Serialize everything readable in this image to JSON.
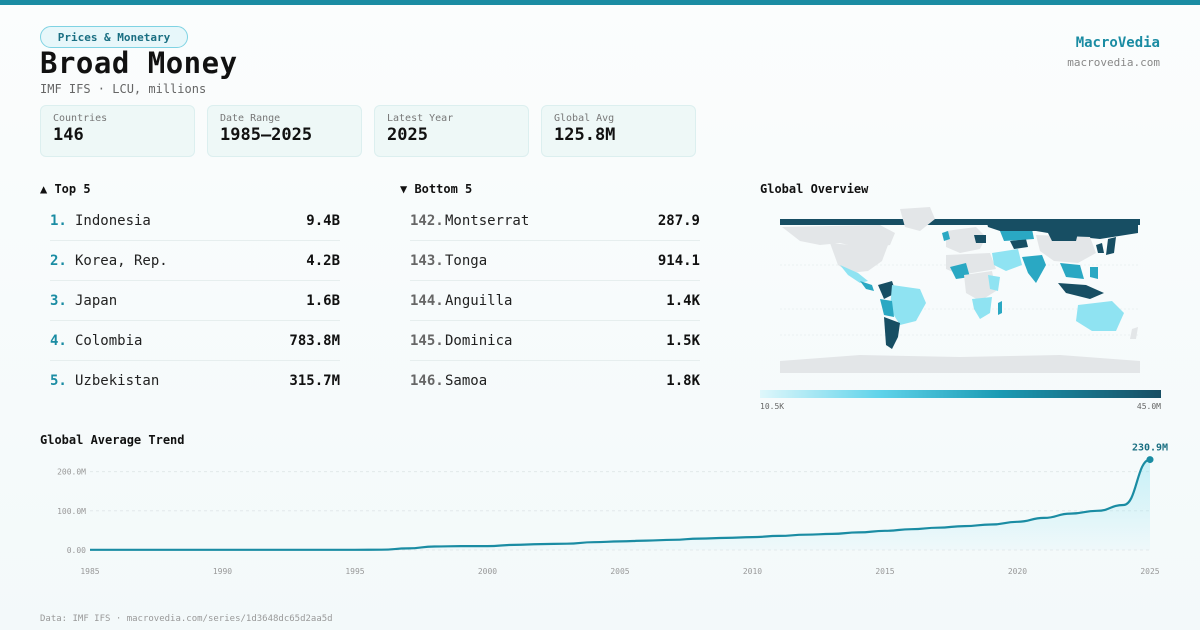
{
  "header": {
    "category": "Prices & Monetary",
    "title": "Broad Money",
    "subtitle": "IMF IFS · LCU, millions",
    "brand": "MacroVedia",
    "brand_url": "macrovedia.com"
  },
  "stats": [
    {
      "label": "Countries",
      "value": "146"
    },
    {
      "label": "Date Range",
      "value": "1985–2025"
    },
    {
      "label": "Latest Year",
      "value": "2025"
    },
    {
      "label": "Global Avg",
      "value": "125.8M"
    }
  ],
  "top5": {
    "heading": "▲ Top 5",
    "items": [
      {
        "rank": "1.",
        "name": "Indonesia",
        "value": "9.4B"
      },
      {
        "rank": "2.",
        "name": "Korea, Rep.",
        "value": "4.2B"
      },
      {
        "rank": "3.",
        "name": "Japan",
        "value": "1.6B"
      },
      {
        "rank": "4.",
        "name": "Colombia",
        "value": "783.8M"
      },
      {
        "rank": "5.",
        "name": "Uzbekistan",
        "value": "315.7M"
      }
    ]
  },
  "bottom5": {
    "heading": "▼ Bottom 5",
    "items": [
      {
        "rank": "142.",
        "name": "Montserrat",
        "value": "287.9"
      },
      {
        "rank": "143.",
        "name": "Tonga",
        "value": "914.1"
      },
      {
        "rank": "144.",
        "name": "Anguilla",
        "value": "1.4K"
      },
      {
        "rank": "145.",
        "name": "Dominica",
        "value": "1.5K"
      },
      {
        "rank": "146.",
        "name": "Samoa",
        "value": "1.8K"
      }
    ]
  },
  "map": {
    "heading": "Global Overview",
    "legend_min": "10.5K",
    "legend_max": "45.0M",
    "colors": {
      "none": "#e3e6e8",
      "low": "#8fe3f2",
      "mid": "#2aa8c3",
      "high": "#174e63"
    }
  },
  "trend": {
    "heading": "Global Average Trend"
  },
  "chart_data": {
    "type": "area",
    "title": "Global Average Trend",
    "xlabel": "",
    "ylabel": "",
    "x": [
      1985,
      1986,
      1987,
      1988,
      1989,
      1990,
      1991,
      1992,
      1993,
      1994,
      1995,
      1996,
      1997,
      1998,
      1999,
      2000,
      2001,
      2002,
      2003,
      2004,
      2005,
      2006,
      2007,
      2008,
      2009,
      2010,
      2011,
      2012,
      2013,
      2014,
      2015,
      2016,
      2017,
      2018,
      2019,
      2020,
      2021,
      2022,
      2023,
      2024,
      2025
    ],
    "values": [
      0.5,
      0.5,
      0.5,
      0.5,
      0.5,
      0.5,
      0.5,
      0.5,
      0.5,
      0.5,
      0.6,
      0.8,
      4,
      9,
      10,
      10,
      13,
      15,
      16,
      20,
      22,
      24,
      26,
      29,
      31,
      33,
      36,
      39,
      41,
      45,
      49,
      53,
      57,
      61,
      65,
      72,
      82,
      93,
      100,
      115,
      230.9
    ],
    "xticks": [
      1985,
      1990,
      1995,
      2000,
      2005,
      2010,
      2015,
      2020,
      2025
    ],
    "yticks": [
      0,
      100,
      200
    ],
    "ytick_labels": [
      "0.00",
      "100.0M",
      "200.0M"
    ],
    "ylim": [
      0,
      240
    ],
    "last_label": "230.9M",
    "color": "#1a8ca3"
  },
  "footer": "Data: IMF IFS · macrovedia.com/series/1d3648dc65d2aa5d"
}
